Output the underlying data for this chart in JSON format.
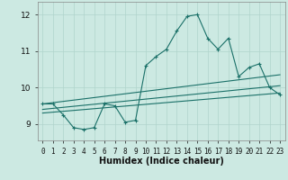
{
  "xlabel": "Humidex (Indice chaleur)",
  "xlim": [
    -0.5,
    23.5
  ],
  "ylim": [
    8.55,
    12.35
  ],
  "yticks": [
    9,
    10,
    11,
    12
  ],
  "xticks": [
    0,
    1,
    2,
    3,
    4,
    5,
    6,
    7,
    8,
    9,
    10,
    11,
    12,
    13,
    14,
    15,
    16,
    17,
    18,
    19,
    20,
    21,
    22,
    23
  ],
  "background_color": "#cce9e2",
  "grid_color": "#b0d4cc",
  "line_color": "#1a7068",
  "line1_x": [
    0,
    1,
    2,
    3,
    4,
    5,
    6,
    7,
    8,
    9,
    10,
    11,
    12,
    13,
    14,
    15,
    16,
    17,
    18,
    19,
    20,
    21,
    22,
    23
  ],
  "line1_y": [
    9.55,
    9.55,
    9.25,
    8.9,
    8.85,
    8.9,
    9.55,
    9.5,
    9.05,
    9.1,
    10.6,
    10.85,
    11.05,
    11.55,
    11.95,
    12.0,
    11.35,
    11.05,
    11.35,
    10.3,
    10.55,
    10.65,
    10.0,
    9.8
  ],
  "line2_x": [
    0,
    23
  ],
  "line2_y": [
    9.55,
    10.35
  ],
  "line3_x": [
    0,
    23
  ],
  "line3_y": [
    9.4,
    10.05
  ],
  "line4_x": [
    0,
    23
  ],
  "line4_y": [
    9.3,
    9.85
  ]
}
